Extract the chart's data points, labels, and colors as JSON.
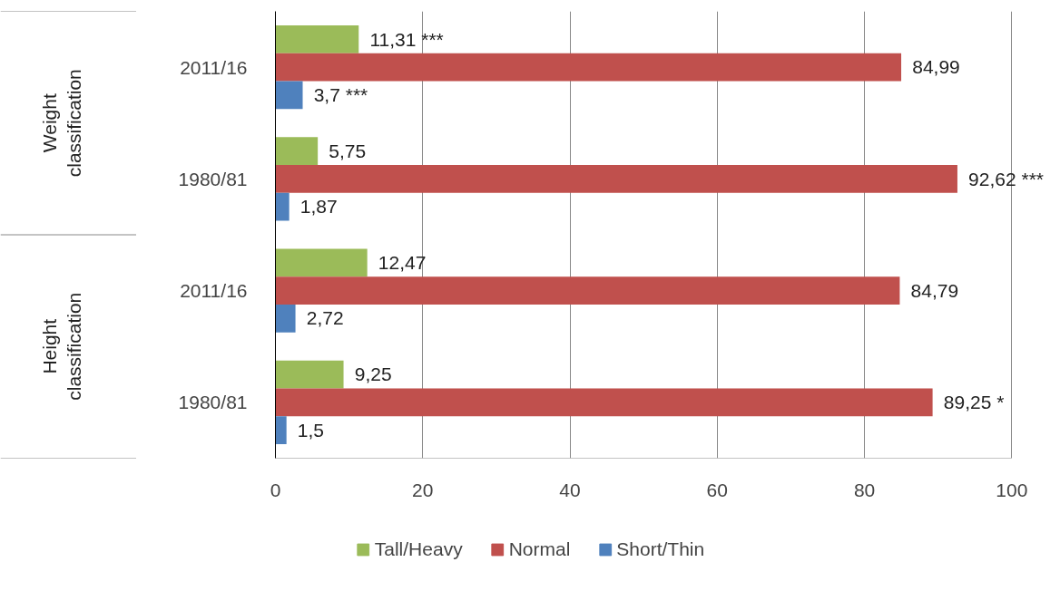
{
  "chart_data": {
    "type": "bar",
    "orientation": "horizontal",
    "categories": [
      "2011/16",
      "1980/81",
      "2011/16",
      "1980/81"
    ],
    "series": [
      {
        "name": "Tall/Heavy",
        "color": "#9bbb59",
        "values": [
          11.31,
          5.75,
          12.47,
          9.25
        ],
        "value_labels": [
          "11,31   ***",
          "5,75",
          "12,47",
          "9,25"
        ]
      },
      {
        "name": "Normal",
        "color": "#c0504d",
        "values": [
          84.99,
          92.62,
          84.79,
          89.25
        ],
        "value_labels": [
          "84,99",
          "92,62 ***",
          "84,79",
          "89,25   *"
        ]
      },
      {
        "name": "Short/Thin",
        "color": "#4f81bd",
        "values": [
          3.7,
          1.87,
          2.72,
          1.5
        ],
        "value_labels": [
          "3,7  ***",
          "1,87",
          "2,72",
          "1,5"
        ]
      }
    ],
    "xlim": [
      0,
      100
    ],
    "xticks": [
      0,
      20,
      40,
      60,
      80,
      100
    ],
    "grid": "x",
    "legend": "bottom",
    "annotations": [
      "Weight\nclassification",
      "Height\nclassification"
    ]
  }
}
